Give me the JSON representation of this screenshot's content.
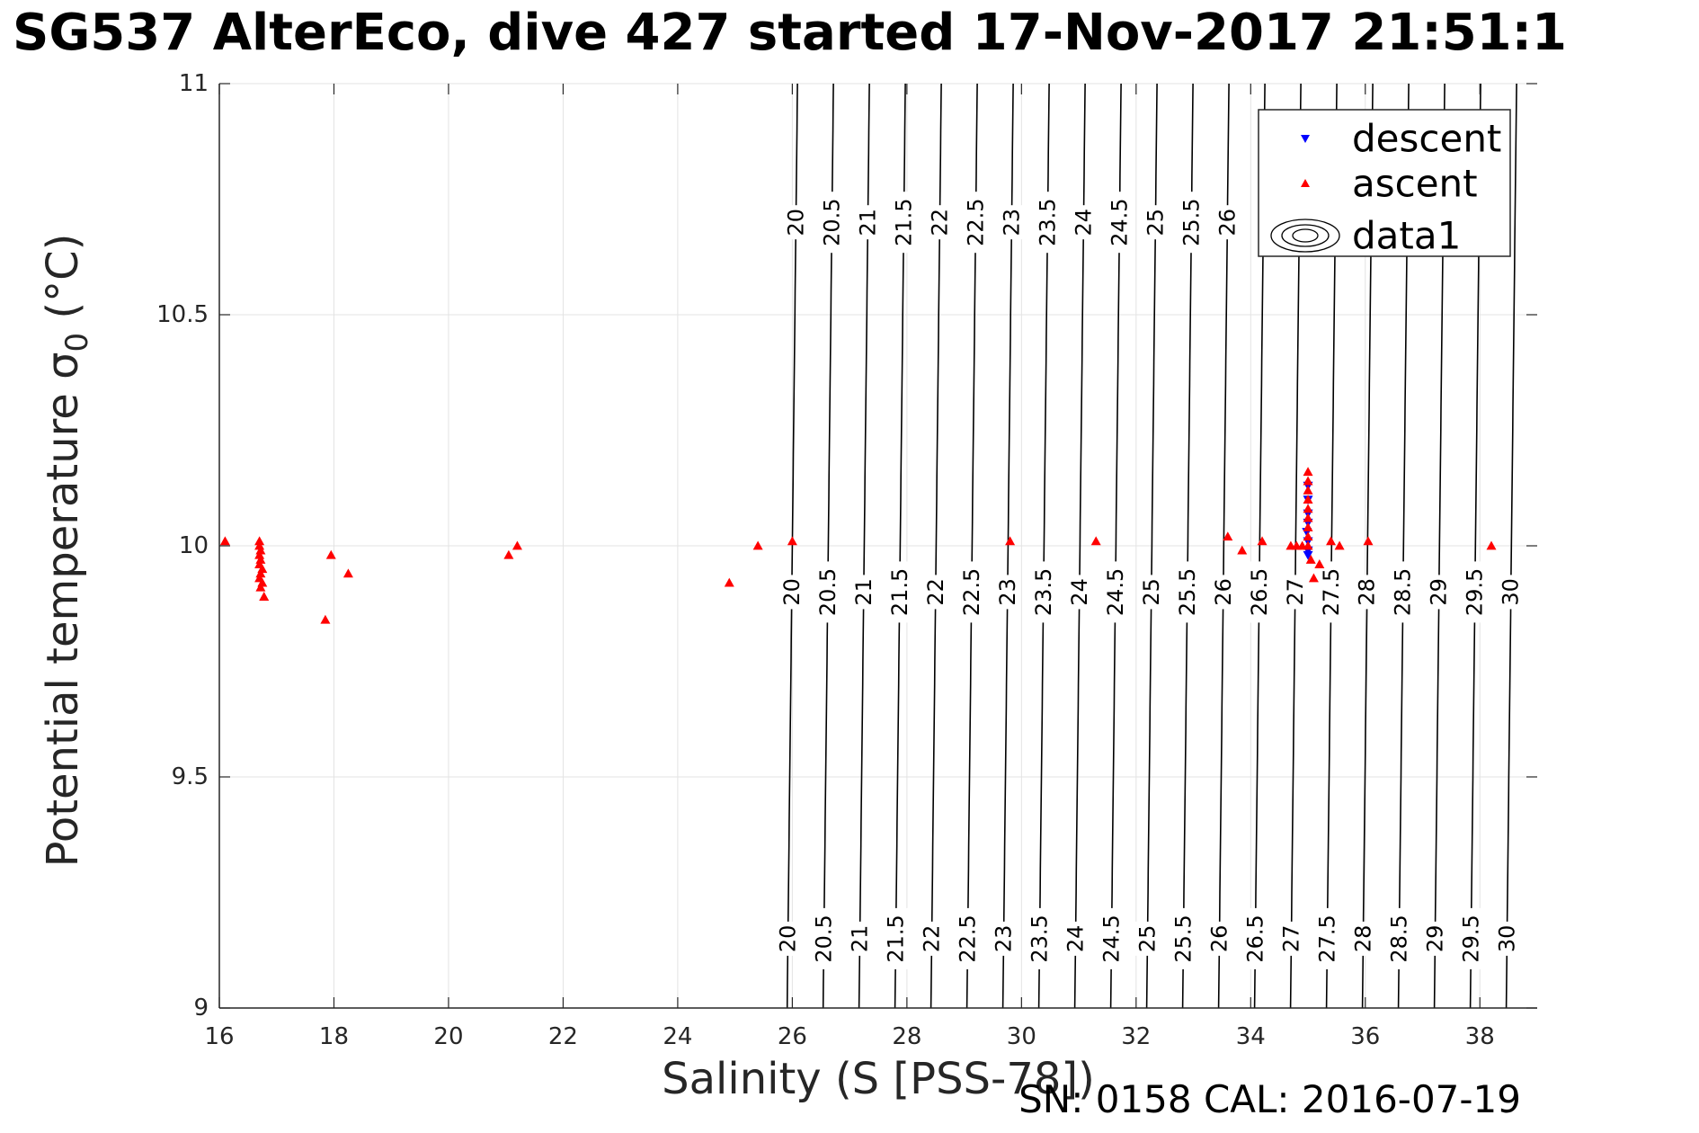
{
  "chart_data": {
    "type": "scatter",
    "title": "SG537 AlterEco, dive 427 started 17-Nov-2017 21:51:1",
    "xlabel": "Salinity (S [PSS-78])",
    "ylabel_main": "Potential temperature ",
    "ylabel_sym": "σ",
    "ylabel_sub": "0",
    "ylabel_unit": " (°C)",
    "footer": "SN: 0158  CAL: 2016-07-19",
    "xlim": [
      16,
      39
    ],
    "ylim": [
      9,
      11
    ],
    "xticks": [
      16,
      18,
      20,
      22,
      24,
      26,
      28,
      30,
      32,
      34,
      36,
      38
    ],
    "yticks": [
      9,
      9.5,
      10,
      10.5,
      11
    ],
    "ytick_labels": [
      "9",
      "9.5",
      "10",
      "10.5",
      "11"
    ],
    "grid": true,
    "legend_placement": "top-right",
    "legend": [
      {
        "label": "descent",
        "marker": "triangle-down",
        "color": "#0000ff"
      },
      {
        "label": "ascent",
        "marker": "triangle-up",
        "color": "#ff0000"
      },
      {
        "label": "data1",
        "marker": "contour"
      }
    ],
    "contour_levels": [
      20,
      20.5,
      21,
      21.5,
      22,
      22.5,
      23,
      23.5,
      24,
      24.5,
      25,
      25.5,
      26,
      26.5,
      27,
      27.5,
      28,
      28.5,
      29,
      29.5,
      30
    ],
    "contour_label_rows": [
      {
        "y": 10.7,
        "levels": [
          20,
          20.5,
          21,
          21.5,
          22,
          22.5,
          23,
          23.5,
          24,
          24.5,
          25,
          25.5,
          26
        ]
      },
      {
        "y": 9.9,
        "levels": [
          20,
          20.5,
          21,
          21.5,
          22,
          22.5,
          23,
          23.5,
          24,
          24.5,
          25,
          25.5,
          26,
          26.5,
          27,
          27.5,
          28,
          28.5,
          29,
          29.5,
          30
        ]
      },
      {
        "y": 9.15,
        "levels": [
          20,
          20.5,
          21,
          21.5,
          22,
          22.5,
          23,
          23.5,
          24,
          24.5,
          25,
          25.5,
          26,
          26.5,
          27,
          27.5,
          28,
          28.5,
          29,
          29.5,
          30
        ]
      }
    ],
    "series": [
      {
        "name": "descent",
        "color": "#0000ff",
        "marker": "triangle-down",
        "points": [
          [
            35.0,
            10.13
          ],
          [
            35.0,
            10.1
          ],
          [
            35.0,
            10.07
          ],
          [
            35.0,
            10.05
          ],
          [
            34.98,
            10.03
          ],
          [
            35.0,
            10.01
          ],
          [
            35.0,
            9.99
          ],
          [
            35.0,
            9.98
          ]
        ]
      },
      {
        "name": "ascent",
        "color": "#ff0000",
        "marker": "triangle-up",
        "points": [
          [
            16.1,
            10.01
          ],
          [
            16.7,
            10.01
          ],
          [
            16.7,
            10.0
          ],
          [
            16.72,
            9.99
          ],
          [
            16.7,
            9.98
          ],
          [
            16.72,
            9.97
          ],
          [
            16.7,
            9.96
          ],
          [
            16.75,
            9.95
          ],
          [
            16.72,
            9.94
          ],
          [
            16.7,
            9.93
          ],
          [
            16.75,
            9.92
          ],
          [
            16.72,
            9.91
          ],
          [
            16.78,
            9.89
          ],
          [
            17.85,
            9.84
          ],
          [
            17.95,
            9.98
          ],
          [
            18.25,
            9.94
          ],
          [
            21.05,
            9.98
          ],
          [
            21.2,
            10.0
          ],
          [
            24.9,
            9.92
          ],
          [
            25.4,
            10.0
          ],
          [
            26.0,
            10.01
          ],
          [
            29.8,
            10.01
          ],
          [
            31.3,
            10.01
          ],
          [
            33.6,
            10.02
          ],
          [
            33.85,
            9.99
          ],
          [
            34.2,
            10.01
          ],
          [
            34.7,
            10.0
          ],
          [
            34.8,
            10.0
          ],
          [
            34.9,
            10.0
          ],
          [
            35.0,
            10.16
          ],
          [
            35.0,
            10.14
          ],
          [
            35.0,
            10.12
          ],
          [
            35.0,
            10.1
          ],
          [
            35.0,
            10.08
          ],
          [
            35.0,
            10.06
          ],
          [
            35.0,
            10.04
          ],
          [
            35.0,
            10.02
          ],
          [
            35.0,
            10.0
          ],
          [
            35.05,
            9.97
          ],
          [
            35.1,
            9.93
          ],
          [
            35.2,
            9.96
          ],
          [
            35.4,
            10.01
          ],
          [
            35.55,
            10.0
          ],
          [
            36.05,
            10.01
          ],
          [
            38.2,
            10.0
          ]
        ]
      }
    ]
  }
}
